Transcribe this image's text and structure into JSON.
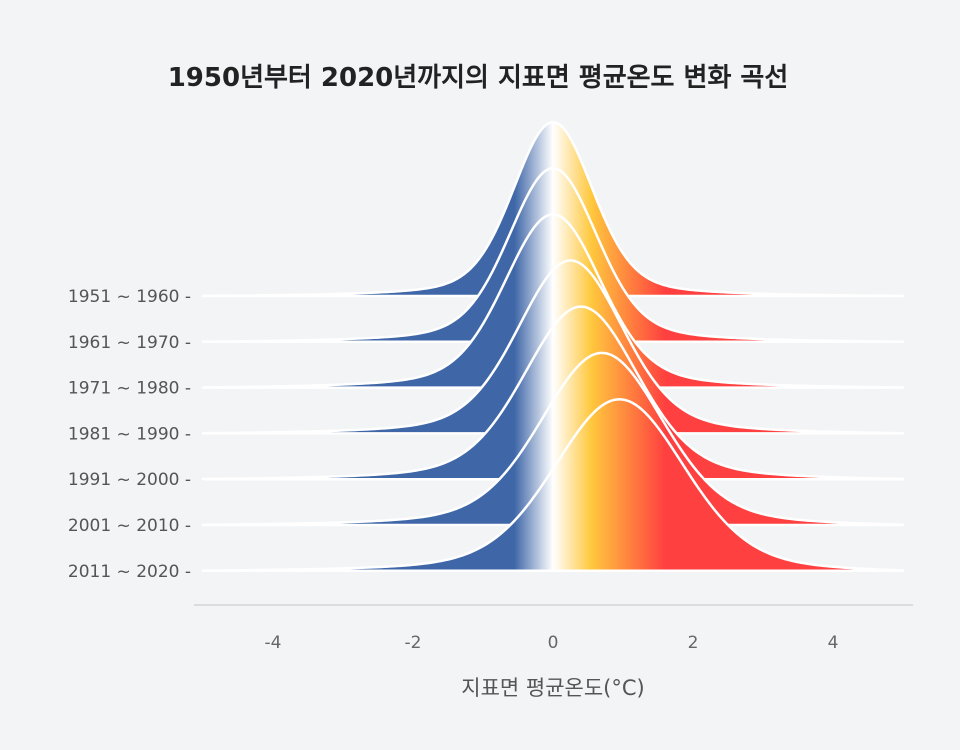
{
  "chart_data": {
    "type": "ridgeline",
    "title": "1950년부터 2020년까지의 지표면 평균온도 변화 곡선",
    "xlabel": "지표면 평균온도(°C)",
    "xlim": [
      -5,
      5
    ],
    "x_ticks": [
      -4,
      -2,
      0,
      2,
      4
    ],
    "x_tick_labels": [
      "-4",
      "-2",
      "0",
      "2",
      "4"
    ],
    "color_scale": {
      "cold": "#3f67a8",
      "neutral": "#ffffff",
      "warm_low": "#ffc83d",
      "warm_high": "#ff4040"
    },
    "series": [
      {
        "label": "1951 ~ 1960 -",
        "peak_x": 0.0
      },
      {
        "label": "1961 ~ 1970 -",
        "peak_x": 0.0
      },
      {
        "label": "1971 ~ 1980 -",
        "peak_x": 0.0
      },
      {
        "label": "1981 ~ 1990 -",
        "peak_x": 0.25
      },
      {
        "label": "1991 ~ 2000 -",
        "peak_x": 0.4
      },
      {
        "label": "2001 ~ 2010 -",
        "peak_x": 0.7
      },
      {
        "label": "2011 ~ 2020 -",
        "peak_x": 0.95
      }
    ]
  }
}
